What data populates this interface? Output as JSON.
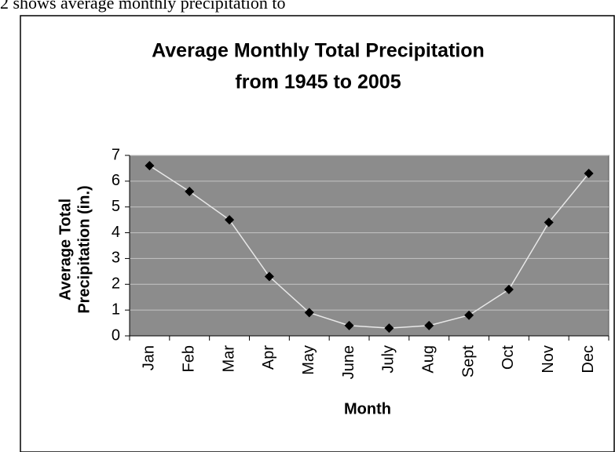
{
  "caption_fragment": "2 shows average monthly precipitation to",
  "chart_data": {
    "type": "line",
    "title": [
      "Average Monthly Total Precipitation",
      "from 1945 to 2005"
    ],
    "x_label": "Month",
    "y_label": [
      "Average Total",
      "Precipitation (in.)"
    ],
    "categories": [
      "Jan",
      "Feb",
      "Mar",
      "Apr",
      "May",
      "June",
      "July",
      "Aug",
      "Sept",
      "Oct",
      "Nov",
      "Dec"
    ],
    "values": [
      6.6,
      5.6,
      4.5,
      2.3,
      0.9,
      0.4,
      0.3,
      0.4,
      0.8,
      1.8,
      4.4,
      6.3
    ],
    "color": "#e8e8e8",
    "marker_color": "#000000",
    "ylim": [
      0,
      7
    ],
    "yticks": [
      0,
      1,
      2,
      3,
      4,
      5,
      6,
      7
    ],
    "grid": true
  }
}
